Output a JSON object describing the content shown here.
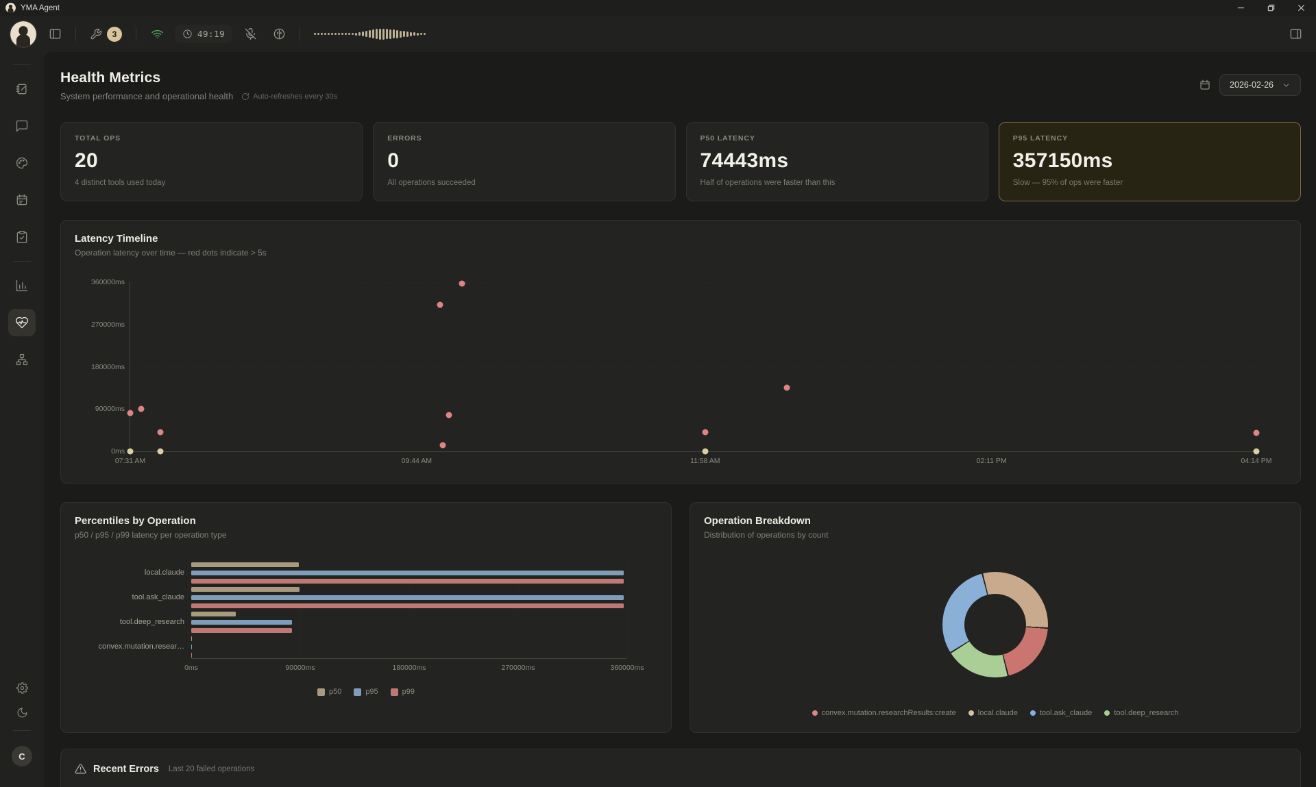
{
  "titlebar": {
    "app_name": "YMA Agent"
  },
  "toolbar": {
    "tools_badge": "3",
    "timer": "49:19",
    "waveform": [
      3,
      3,
      3,
      3,
      3,
      3,
      3,
      3,
      3,
      3,
      3,
      3,
      4,
      5,
      7,
      9,
      11,
      13,
      15,
      16,
      16,
      15,
      14,
      13,
      12,
      10,
      9,
      8,
      6,
      5,
      4,
      3,
      3
    ]
  },
  "icons": {
    "toolbar": [
      "panel-left-icon",
      "wrench-icon",
      "wifi-icon",
      "clock-icon",
      "mic-off-icon",
      "brain-icon",
      "panel-right-icon"
    ],
    "sidebar": [
      "notebook-icon",
      "chat-icon",
      "palette-icon",
      "calendar-icon",
      "clipboard-check-icon",
      "bar-chart-icon",
      "heart-pulse-icon",
      "org-chart-icon",
      "settings-gear-icon",
      "moon-icon"
    ],
    "header": [
      "calendar-icon",
      "refresh-icon",
      "chevron-down-icon"
    ],
    "errors": [
      "warning-triangle-icon"
    ]
  },
  "sidebar": {
    "bottom_avatar": "C"
  },
  "header": {
    "title": "Health Metrics",
    "subtitle": "System performance and operational health",
    "auto_refresh": "Auto-refreshes every 30s",
    "date": "2026-02-26"
  },
  "stat_cards": [
    {
      "label": "TOTAL OPS",
      "value": "20",
      "sub": "4 distinct tools used today",
      "highlight": false
    },
    {
      "label": "ERRORS",
      "value": "0",
      "sub": "All operations succeeded",
      "highlight": false
    },
    {
      "label": "P50 LATENCY",
      "value": "74443ms",
      "sub": "Half of operations were faster than this",
      "highlight": false
    },
    {
      "label": "P95 LATENCY",
      "value": "357150ms",
      "sub": "Slow — 95% of ops were faster",
      "highlight": true
    }
  ],
  "latency_timeline": {
    "title": "Latency Timeline",
    "subtitle": "Operation latency over time — red dots indicate > 5s",
    "chart_data": {
      "type": "scatter",
      "y_ticks": [
        "0ms",
        "90000ms",
        "180000ms",
        "270000ms",
        "360000ms"
      ],
      "y_max": 360000,
      "x_ticks": [
        "07:31 AM",
        "09:44 AM",
        "11:58 AM",
        "02:11 PM",
        "04:14 PM"
      ],
      "colors": {
        "slow": "#de8484",
        "normal": "#d9cfa0"
      },
      "points": [
        {
          "time": "07:31 AM",
          "ms": 0,
          "slow": false
        },
        {
          "time": "07:31 AM",
          "ms": 82000,
          "slow": true
        },
        {
          "time": "07:36 AM",
          "ms": 91000,
          "slow": true
        },
        {
          "time": "07:45 AM",
          "ms": 41000,
          "slow": true
        },
        {
          "time": "07:45 AM",
          "ms": 0,
          "slow": false
        },
        {
          "time": "09:55 AM",
          "ms": 312000,
          "slow": true
        },
        {
          "time": "10:05 AM",
          "ms": 357150,
          "slow": true
        },
        {
          "time": "09:56 AM",
          "ms": 13000,
          "slow": true
        },
        {
          "time": "09:59 AM",
          "ms": 77000,
          "slow": true
        },
        {
          "time": "11:58 AM",
          "ms": 41000,
          "slow": true
        },
        {
          "time": "11:58 AM",
          "ms": 0,
          "slow": false
        },
        {
          "time": "12:36 PM",
          "ms": 135000,
          "slow": true
        },
        {
          "time": "04:14 PM",
          "ms": 39000,
          "slow": true
        },
        {
          "time": "04:14 PM",
          "ms": 0,
          "slow": false
        }
      ]
    }
  },
  "percentiles": {
    "title": "Percentiles by Operation",
    "subtitle": "p50 / p95 / p99 latency per operation type",
    "chart_data": {
      "type": "bar",
      "orientation": "horizontal",
      "x_ticks": [
        "0ms",
        "90000ms",
        "180000ms",
        "270000ms",
        "360000ms"
      ],
      "x_max": 360000,
      "categories": [
        "local.claude",
        "tool.ask_claude",
        "tool.deep_research",
        "convex.mutation.resear…"
      ],
      "series": [
        {
          "name": "p50",
          "color": "#a79a7f",
          "values": [
            89000,
            89500,
            37000,
            400
          ]
        },
        {
          "name": "p95",
          "color": "#7f9db8",
          "values": [
            357000,
            357150,
            83000,
            600
          ]
        },
        {
          "name": "p99",
          "color": "#bf7873",
          "values": [
            357000,
            357150,
            83000,
            600
          ]
        }
      ]
    }
  },
  "breakdown": {
    "title": "Operation Breakdown",
    "subtitle": "Distribution of operations by count",
    "chart_data": {
      "type": "pie",
      "donut": true,
      "start_angle_deg": -15,
      "total_ops": 20,
      "slices": [
        {
          "name": "local.claude",
          "count": 6,
          "color": "#c9aa8c"
        },
        {
          "name": "convex.mutation.researchResults:create",
          "count": 4,
          "color": "#cb7570"
        },
        {
          "name": "tool.deep_research",
          "count": 4,
          "color": "#a9cf97"
        },
        {
          "name": "tool.ask_claude",
          "count": 6,
          "color": "#8ab0d8"
        }
      ],
      "legend": [
        {
          "name": "convex.mutation.researchResults:create",
          "color": "#d98888"
        },
        {
          "name": "local.claude",
          "color": "#d8c0a0"
        },
        {
          "name": "tool.ask_claude",
          "color": "#85b3e0"
        },
        {
          "name": "tool.deep_research",
          "color": "#a5d08f"
        }
      ]
    }
  },
  "recent_errors": {
    "title": "Recent Errors",
    "subtitle": "Last 20 failed operations"
  }
}
